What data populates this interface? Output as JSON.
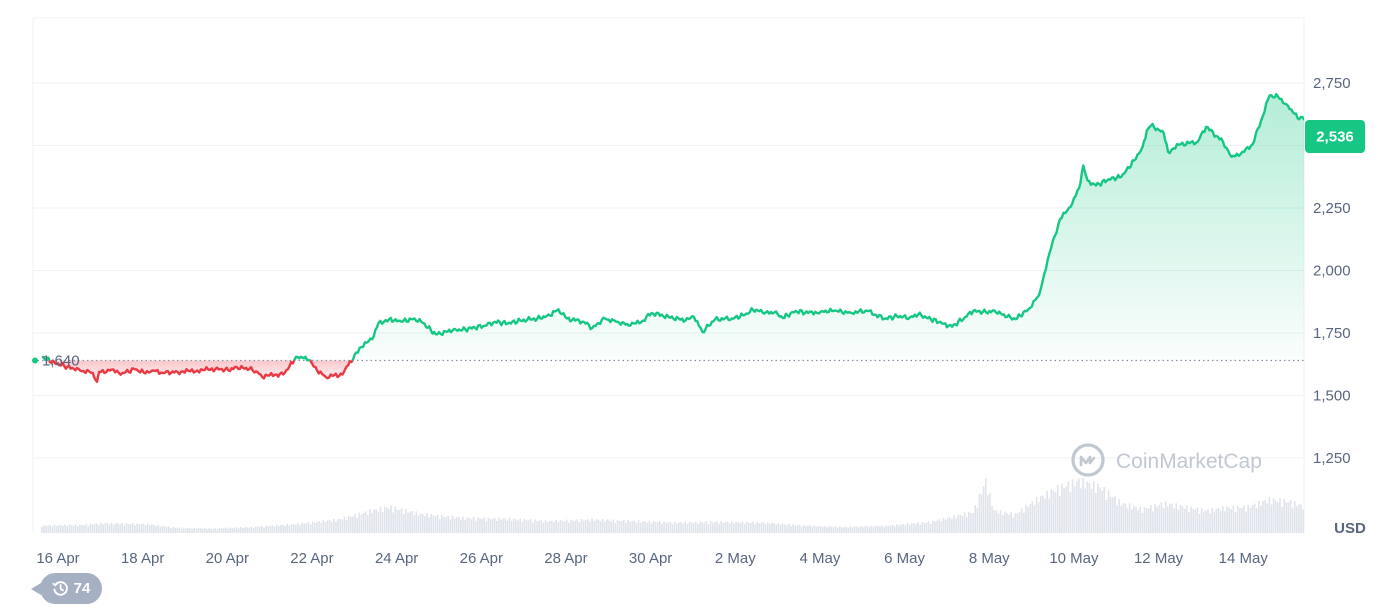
{
  "chart_data": {
    "type": "area",
    "ylim": [
      1000,
      3000
    ],
    "y_ticks": [
      "1,250",
      "1,500",
      "1,750",
      "2,000",
      "2,250",
      "2,500",
      "2,750"
    ],
    "y_tick_values": [
      1250,
      1500,
      1750,
      2000,
      2250,
      2500,
      2750
    ],
    "x_ticks": [
      "16 Apr",
      "18 Apr",
      "20 Apr",
      "22 Apr",
      "24 Apr",
      "26 Apr",
      "28 Apr",
      "30 Apr",
      "2 May",
      "4 May",
      "6 May",
      "8 May",
      "10 May",
      "12 May",
      "14 May"
    ],
    "x_tick_days": [
      0,
      2,
      4,
      6,
      8,
      10,
      12,
      14,
      16,
      18,
      20,
      22,
      24,
      26,
      28
    ],
    "x_range_days": [
      0,
      30.1
    ],
    "unit_label": "USD",
    "reference_value": 1640,
    "reference_label": "1,640",
    "current_value": 2536,
    "current_label": "2,536",
    "watermark": "CoinMarketCap",
    "colors": {
      "up": "#16c784",
      "down": "#ea3943",
      "grid": "#eff2f5",
      "text": "#58667e",
      "volume": "#dfe3ea"
    },
    "series": [
      {
        "values": [
          [
            0.0,
            1655
          ],
          [
            0.3,
            1630
          ],
          [
            0.6,
            1615
          ],
          [
            0.9,
            1600
          ],
          [
            1.2,
            1590
          ],
          [
            1.3,
            1555
          ],
          [
            1.35,
            1595
          ],
          [
            1.6,
            1600
          ],
          [
            1.9,
            1590
          ],
          [
            2.2,
            1605
          ],
          [
            2.4,
            1592
          ],
          [
            2.6,
            1600
          ],
          [
            2.9,
            1590
          ],
          [
            3.2,
            1595
          ],
          [
            3.5,
            1597
          ],
          [
            3.8,
            1602
          ],
          [
            4.1,
            1607
          ],
          [
            4.4,
            1601
          ],
          [
            4.6,
            1614
          ],
          [
            4.9,
            1606
          ],
          [
            5.1,
            1592
          ],
          [
            5.2,
            1574
          ],
          [
            5.5,
            1583
          ],
          [
            5.7,
            1584
          ],
          [
            5.85,
            1618
          ],
          [
            6.0,
            1655
          ],
          [
            6.15,
            1652
          ],
          [
            6.3,
            1642
          ],
          [
            6.5,
            1600
          ],
          [
            6.7,
            1575
          ],
          [
            6.9,
            1581
          ],
          [
            7.1,
            1584
          ],
          [
            7.2,
            1616
          ],
          [
            7.35,
            1645
          ],
          [
            7.5,
            1690
          ],
          [
            7.8,
            1725
          ],
          [
            7.95,
            1790
          ],
          [
            8.2,
            1805
          ],
          [
            8.5,
            1795
          ],
          [
            8.8,
            1808
          ],
          [
            9.0,
            1790
          ],
          [
            9.3,
            1745
          ],
          [
            9.7,
            1760
          ],
          [
            10.0,
            1765
          ],
          [
            10.5,
            1780
          ],
          [
            10.7,
            1795
          ],
          [
            11.0,
            1788
          ],
          [
            11.3,
            1800
          ],
          [
            11.7,
            1808
          ],
          [
            12.0,
            1820
          ],
          [
            12.2,
            1845
          ],
          [
            12.4,
            1808
          ],
          [
            12.8,
            1795
          ],
          [
            13.0,
            1770
          ],
          [
            13.3,
            1808
          ],
          [
            13.6,
            1795
          ],
          [
            13.9,
            1780
          ],
          [
            14.2,
            1800
          ],
          [
            14.4,
            1830
          ],
          [
            14.8,
            1815
          ],
          [
            15.2,
            1800
          ],
          [
            15.4,
            1815
          ],
          [
            15.6,
            1755
          ],
          [
            15.9,
            1805
          ],
          [
            16.3,
            1808
          ],
          [
            16.6,
            1822
          ],
          [
            16.8,
            1843
          ],
          [
            17.1,
            1833
          ],
          [
            17.3,
            1832
          ],
          [
            17.5,
            1810
          ],
          [
            17.8,
            1838
          ],
          [
            18.1,
            1830
          ],
          [
            18.4,
            1836
          ],
          [
            18.7,
            1838
          ],
          [
            19.1,
            1832
          ],
          [
            19.5,
            1838
          ],
          [
            19.9,
            1807
          ],
          [
            20.2,
            1817
          ],
          [
            20.5,
            1812
          ],
          [
            20.7,
            1825
          ],
          [
            21.0,
            1805
          ],
          [
            21.3,
            1788
          ],
          [
            21.5,
            1775
          ],
          [
            21.8,
            1813
          ],
          [
            22.0,
            1838
          ],
          [
            22.3,
            1833
          ],
          [
            22.5,
            1840
          ],
          [
            22.8,
            1815
          ],
          [
            23.0,
            1805
          ],
          [
            23.3,
            1845
          ],
          [
            23.55,
            1900
          ],
          [
            23.8,
            2070
          ],
          [
            24.05,
            2205
          ],
          [
            24.3,
            2255
          ],
          [
            24.5,
            2330
          ],
          [
            24.6,
            2420
          ],
          [
            24.7,
            2360
          ],
          [
            24.9,
            2340
          ],
          [
            25.2,
            2365
          ],
          [
            25.5,
            2375
          ],
          [
            25.8,
            2440
          ],
          [
            26.0,
            2495
          ],
          [
            26.1,
            2560
          ],
          [
            26.2,
            2580
          ],
          [
            26.5,
            2550
          ],
          [
            26.6,
            2475
          ],
          [
            26.9,
            2505
          ],
          [
            27.3,
            2515
          ],
          [
            27.5,
            2575
          ],
          [
            27.9,
            2515
          ],
          [
            28.1,
            2455
          ],
          [
            28.4,
            2475
          ],
          [
            28.6,
            2505
          ],
          [
            28.8,
            2600
          ],
          [
            29.0,
            2700
          ],
          [
            29.2,
            2695
          ],
          [
            29.4,
            2665
          ],
          [
            29.7,
            2605
          ],
          [
            30.0,
            2620
          ],
          [
            30.1,
            2536
          ]
        ]
      }
    ],
    "volume": [
      [
        0.0,
        0.1
      ],
      [
        1.0,
        0.11
      ],
      [
        1.5,
        0.13
      ],
      [
        2.5,
        0.12
      ],
      [
        3.2,
        0.07
      ],
      [
        4.0,
        0.06
      ],
      [
        5.0,
        0.08
      ],
      [
        6.0,
        0.12
      ],
      [
        7.0,
        0.18
      ],
      [
        7.8,
        0.3
      ],
      [
        8.2,
        0.35
      ],
      [
        9.0,
        0.25
      ],
      [
        10.0,
        0.2
      ],
      [
        11.0,
        0.19
      ],
      [
        12.0,
        0.16
      ],
      [
        13.0,
        0.18
      ],
      [
        14.0,
        0.16
      ],
      [
        15.0,
        0.14
      ],
      [
        16.0,
        0.15
      ],
      [
        17.0,
        0.14
      ],
      [
        18.0,
        0.1
      ],
      [
        19.0,
        0.08
      ],
      [
        20.0,
        0.1
      ],
      [
        21.0,
        0.15
      ],
      [
        22.0,
        0.28
      ],
      [
        22.3,
        0.7
      ],
      [
        22.5,
        0.3
      ],
      [
        23.0,
        0.25
      ],
      [
        23.5,
        0.45
      ],
      [
        24.0,
        0.6
      ],
      [
        24.5,
        0.7
      ],
      [
        25.0,
        0.62
      ],
      [
        25.5,
        0.4
      ],
      [
        26.0,
        0.32
      ],
      [
        26.5,
        0.4
      ],
      [
        27.0,
        0.35
      ],
      [
        27.5,
        0.3
      ],
      [
        28.0,
        0.34
      ],
      [
        28.5,
        0.35
      ],
      [
        29.0,
        0.45
      ],
      [
        29.5,
        0.42
      ],
      [
        30.1,
        0.3
      ]
    ]
  },
  "history_badge": {
    "count": "74",
    "icon": "history-clock-icon"
  }
}
